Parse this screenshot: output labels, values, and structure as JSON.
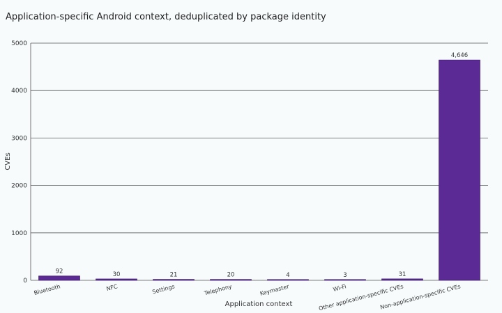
{
  "chart_data": {
    "type": "bar",
    "title": "Application-specific Android context, deduplicated by package identity",
    "xlabel": "Application context",
    "ylabel": "CVEs",
    "categories": [
      "Bluetooth",
      "NFC",
      "Settings",
      "Telephony",
      "Keymaster",
      "Wi-Fi",
      "Other application-specific CVEs",
      "Non-application-specific CVEs"
    ],
    "values": [
      92,
      30,
      21,
      20,
      4,
      3,
      31,
      4646
    ],
    "data_labels": [
      "92",
      "30",
      "21",
      "20",
      "4",
      "3",
      "31",
      "4,646"
    ],
    "ylim": [
      0,
      5000
    ],
    "yticks": [
      0,
      1000,
      2000,
      3000,
      4000,
      5000
    ],
    "grid": true,
    "legend": "none",
    "colors": {
      "bar": "#5b2a95",
      "bar_edge": "#3a1a66",
      "grid": "#555555",
      "background": "#f7fbfc"
    }
  }
}
